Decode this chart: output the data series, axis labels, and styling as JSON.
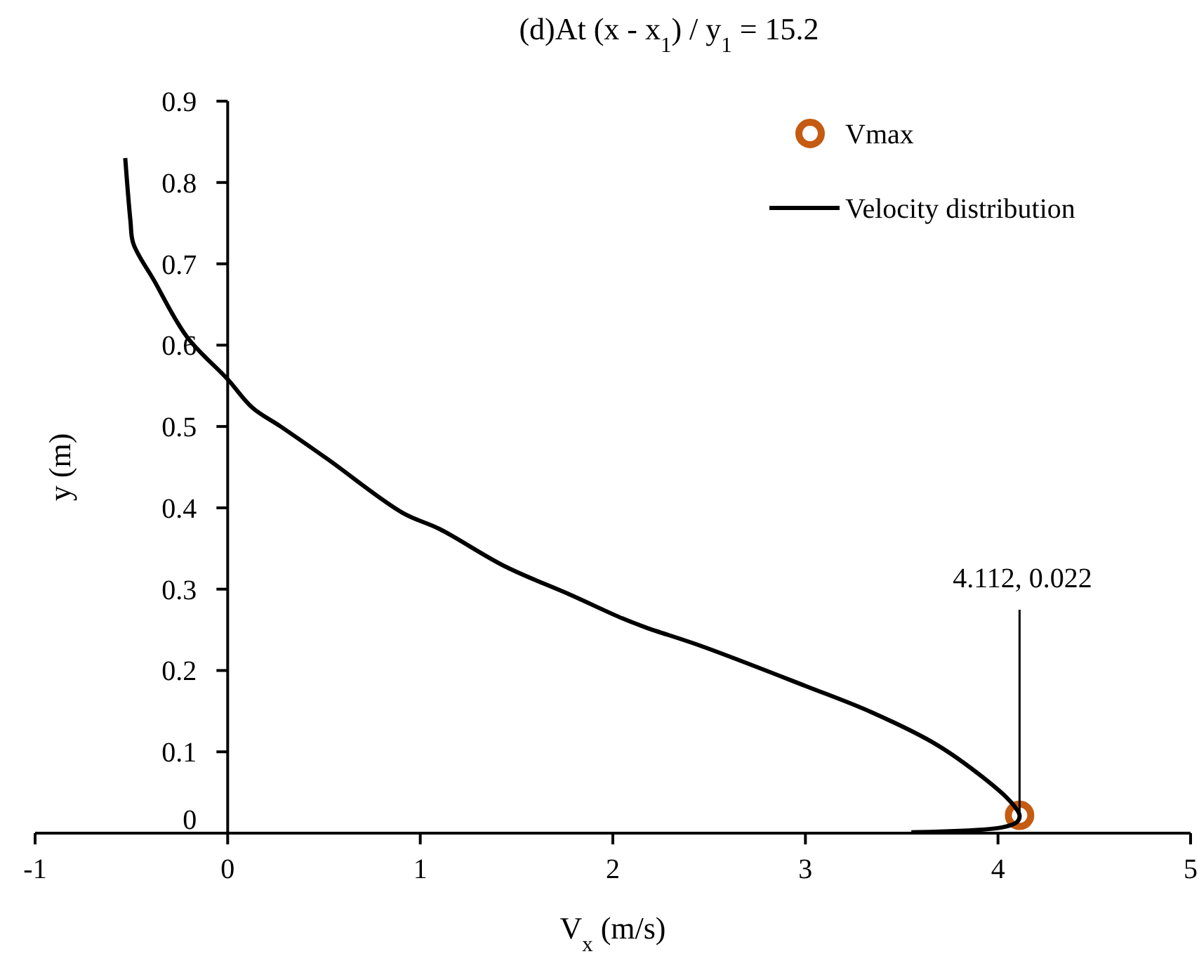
{
  "chart_data": {
    "type": "line",
    "title": "(d)At (x - x$_{1}$) / y$_{1}$ = 15.2",
    "xlabel": "V$_{x}$ (m/s)",
    "ylabel": "y (m)",
    "xlim": [
      -1,
      5
    ],
    "xticks": [
      -1,
      0,
      1,
      2,
      3,
      4,
      5
    ],
    "ylim": [
      0,
      0.9
    ],
    "yticks": [
      0,
      0.1,
      0.2,
      0.3,
      0.4,
      0.5,
      0.6,
      0.7,
      0.8,
      0.9
    ],
    "grid": false,
    "legend": "top right",
    "series": [
      {
        "name": "Vmax",
        "type": "scatter",
        "color": "#c55a11",
        "marker": "circle",
        "x": [
          4.112
        ],
        "values": [
          0.022
        ]
      },
      {
        "name": "Velocity distribution",
        "color": "#000000",
        "line_style": "solid",
        "marker": "none",
        "x": [
          -0.532,
          -0.505,
          -0.49,
          -0.381,
          -0.211,
          0,
          0.129,
          0.275,
          0.518,
          0.907,
          1.1,
          1.44,
          1.78,
          2.05,
          2.17,
          2.46,
          3.0,
          3.34,
          3.68,
          3.92,
          4.06,
          4.112,
          4.1,
          4.02,
          3.55
        ],
        "values": [
          0.83,
          0.753,
          0.725,
          0.679,
          0.61,
          0.558,
          0.523,
          0.5,
          0.46,
          0.394,
          0.374,
          0.328,
          0.293,
          0.264,
          0.253,
          0.23,
          0.181,
          0.149,
          0.109,
          0.069,
          0.04,
          0.022,
          0.014,
          0.007,
          0.001
        ]
      }
    ],
    "annotations": [
      {
        "text": "4.112, 0.022",
        "x": 4.112,
        "y": 0.022
      }
    ]
  }
}
